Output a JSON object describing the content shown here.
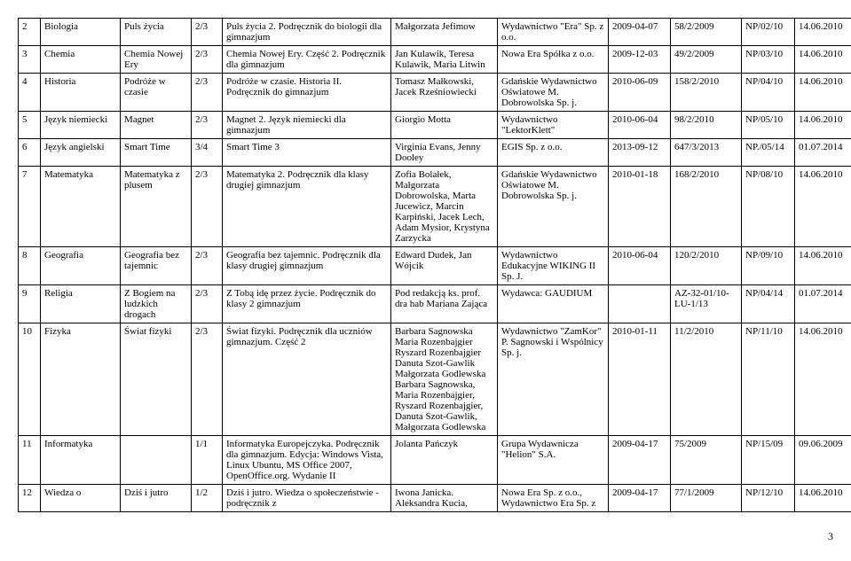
{
  "page_number": "3",
  "rows": [
    {
      "n": "2",
      "subj": "Biologia",
      "series": "Puls życia",
      "grade": "2/3",
      "title": "Puls życia 2. Podręcznik do biologii dla gimnazjum",
      "author": "Małgorzata Jefimow",
      "pub": "Wydawnictwo \"Era\" Sp. z o.o.",
      "date": "2009-04-07",
      "appr": "58/2/2009",
      "np": "NP/02/10",
      "dat2": "14.06.2010"
    },
    {
      "n": "3",
      "subj": "Chemia",
      "series": "Chemia Nowej Ery",
      "grade": "2/3",
      "title": "Chemia Nowej Ery. Część 2. Podręcznik dla gimnazjum",
      "author": "Jan Kulawik, Teresa Kulawik, Maria Litwin",
      "pub": "Nowa Era Spółka z o.o.",
      "date": "2009-12-03",
      "appr": "49/2/2009",
      "np": "NP/03/10",
      "dat2": "14.06.2010"
    },
    {
      "n": "4",
      "subj": "Historia",
      "series": "Podróże w czasie",
      "grade": "2/3",
      "title": "Podróże w czasie. Historia II. Podręcznik do gimnazjum",
      "author": "Tomasz Małkowski, Jacek Rześniowiecki",
      "pub": "Gdańskie Wydawnictwo Oświatowe M. Dobrowolska Sp. j.",
      "date": "2010-06-09",
      "appr": "158/2/2010",
      "np": "NP/04/10",
      "dat2": "14.06.2010"
    },
    {
      "n": "5",
      "subj": "Język niemiecki",
      "series": "Magnet",
      "grade": "2/3",
      "title": "Magnet 2. Język niemiecki dla gimnazjum",
      "author": "Giorgio Motta",
      "pub": "Wydawnictwo \"LektorKlett\"",
      "date": "2010-06-04",
      "appr": "98/2/2010",
      "np": "NP/05/10",
      "dat2": "14.06.2010"
    },
    {
      "n": "6",
      "subj": "Język angielski",
      "series": "Smart Time",
      "grade": "3/4",
      "title": "Smart Time 3",
      "author": "Virginia Evans, Jenny Dooley",
      "pub": "EGIS Sp. z o.o.",
      "date": "2013-09-12",
      "appr": "647/3/2013",
      "np": "NP./05/14",
      "dat2": "01.07.2014"
    },
    {
      "n": "7",
      "subj": "Matematyka",
      "series": "Matematyka z plusem",
      "grade": "2/3",
      "title": "Matematyka 2. Podręcznik dla klasy drugiej gimnazjum",
      "author": "Zofia Bolałek, Małgorzata Dobrowolska, Marta Jucewicz, Marcin Karpiński, Jacek Lech, Adam Mysior, Krystyna Zarzycka",
      "pub": "Gdańskie Wydawnictwo Oświatowe M. Dobrowolska Sp. j.",
      "date": "2010-01-18",
      "appr": "168/2/2010",
      "np": "NP/08/10",
      "dat2": "14.06.2010"
    },
    {
      "n": "8",
      "subj": "Geografia",
      "series": "Geografia bez tajemnic",
      "grade": "2/3",
      "title": "Geografia bez tajemnic. Podręcznik dla klasy drugiej gimnazjum",
      "author": "Edward Dudek, Jan Wójcik",
      "pub": "Wydawnictwo Edukacyjne WIKING II Sp. J.",
      "date": "2010-06-04",
      "appr": "120/2/2010",
      "np": "NP/09/10",
      "dat2": "14.06.2010"
    },
    {
      "n": "9",
      "subj": "Religia",
      "series": "Z Bogiem na ludzkich drogach",
      "grade": "2/3",
      "title": "Z Tobą idę przez życie. Podręcznik do klasy 2 gimnazjum",
      "author": "Pod redakcją ks. prof. dra hab Mariana Zająca",
      "pub": "Wydawca: GAUDIUM",
      "date": "",
      "appr": "AZ-32-01/10-LU-1/13",
      "np": "NP/04/14",
      "dat2": "01.07.2014"
    },
    {
      "n": "10",
      "subj": "Fizyka",
      "series": "Świat fizyki",
      "grade": "2/3",
      "title": "Świat fizyki. Podręcznik dla uczniów gimnazjum. Część 2",
      "author": "Barbara Sagnowska Maria Rozenbajgier Ryszard Rozenbajgier Danuta Szot-Gawlik Małgorzata Godlewska Barbara Sagnowska, Maria Rozenbajgier, Ryszard Rozenbajgier, Danuta Szot-Gawlik, Małgorzata Godlewska",
      "pub": "Wydawnictwo \"ZamKor\" P. Sagnowski i Wspólnicy Sp. j.",
      "date": "2010-01-11",
      "appr": "11/2/2010",
      "np": "NP/11/10",
      "dat2": "14.06.2010"
    },
    {
      "n": "11",
      "subj": "Informatyka",
      "series": "",
      "grade": "1/1",
      "title": "Informatyka Europejczyka. Podręcznik dla gimnazjum. Edycja: Windows Vista, Linux Ubuntu, MS Office 2007, OpenOffice.org. Wydanie II",
      "author": "Jolanta Pańczyk",
      "pub": "Grupa Wydawnicza \"Helion\" S.A.",
      "date": "2009-04-17",
      "appr": "75/2009",
      "np": "NP/15/09",
      "dat2": "09.06.2009"
    },
    {
      "n": "12",
      "subj": "Wiedza o",
      "series": "Dziś i jutro",
      "grade": "1/2",
      "title": "Dziś i jutro. Wiedza o społeczeństwie - podręcznik z",
      "author": "Iwona Janicka. Aleksandra Kucia,",
      "pub": "Nowa Era Sp. z o.o., Wydawnictwo Era Sp. z",
      "date": "2009-04-17",
      "appr": "77/1/2009",
      "np": "NP/12/10",
      "dat2": "14.06.2010"
    }
  ]
}
